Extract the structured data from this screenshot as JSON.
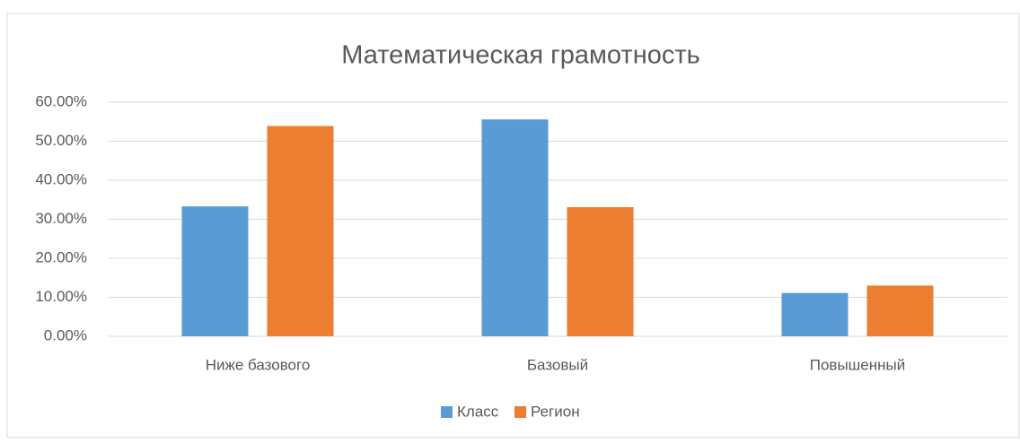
{
  "chart_data": {
    "type": "bar",
    "title": "Математическая грамотность",
    "categories": [
      "Ниже базового",
      "Базовый",
      "Повышенный"
    ],
    "series": [
      {
        "name": "Класс",
        "color": "#5b9bd5",
        "values": [
          33.3,
          55.6,
          11.1
        ]
      },
      {
        "name": "Регион",
        "color": "#ed7d31",
        "values": [
          53.9,
          33.1,
          13.0
        ]
      }
    ],
    "ylim": [
      0,
      60
    ],
    "yticks": [
      {
        "value": 0,
        "label": "0.00%"
      },
      {
        "value": 10,
        "label": "10.00%"
      },
      {
        "value": 20,
        "label": "20.00%"
      },
      {
        "value": 30,
        "label": "30.00%"
      },
      {
        "value": 40,
        "label": "40.00%"
      },
      {
        "value": 50,
        "label": "50.00%"
      },
      {
        "value": 60,
        "label": "60.00%"
      }
    ],
    "grid": true,
    "legend": "bottom"
  }
}
